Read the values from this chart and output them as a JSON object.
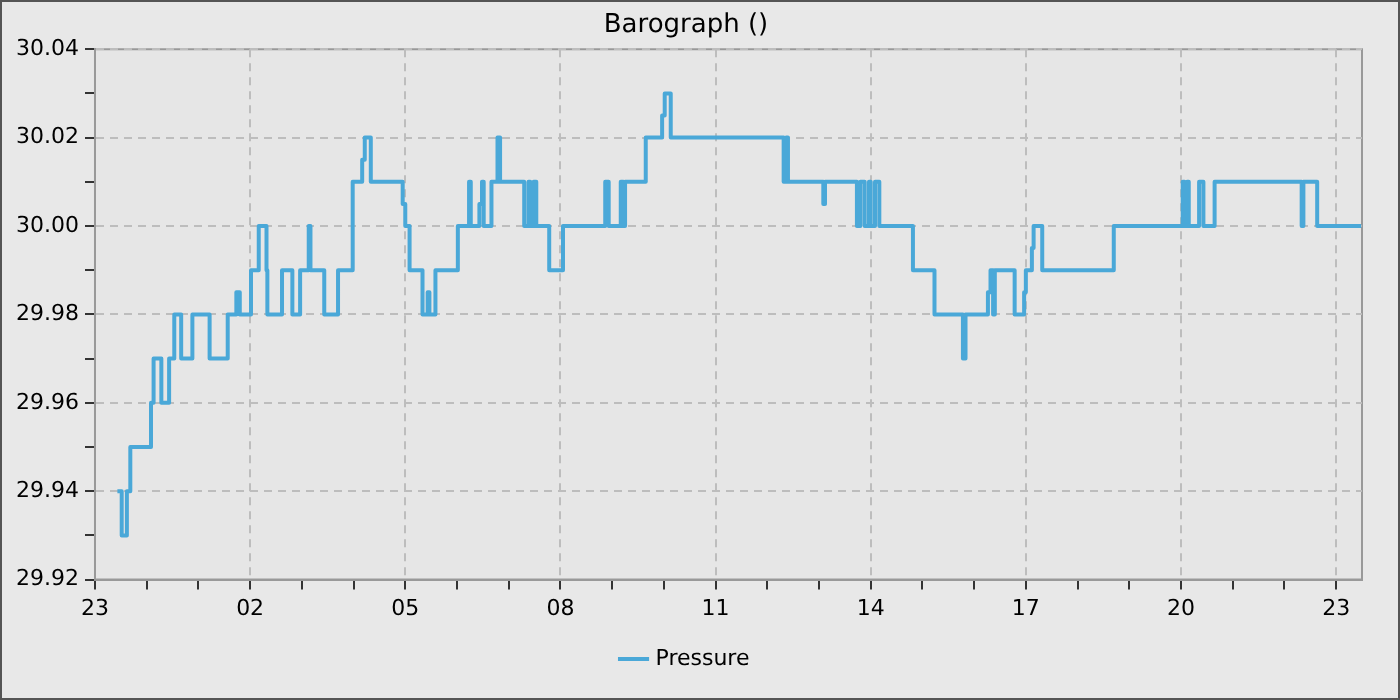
{
  "chart_data": {
    "type": "step",
    "title": "Barograph ()",
    "x": [
      "--01-01T23:26",
      "--01-01T23:31",
      "--01-01T23:37",
      "--01-01T23:41",
      "--01-02T00:05",
      "--01-02T00:08",
      "--01-02T00:17",
      "--01-02T00:26",
      "--01-02T00:32",
      "--01-02T00:40",
      "--01-02T00:53",
      "--01-02T01:13",
      "--01-02T01:34",
      "--01-02T01:44",
      "--01-02T01:48",
      "--01-02T02:01",
      "--01-02T02:10",
      "--01-02T02:19",
      "--01-02T02:20",
      "--01-02T02:37",
      "--01-02T02:49",
      "--01-02T02:58",
      "--01-02T03:08",
      "--01-02T03:10",
      "--01-02T03:26",
      "--01-02T03:42",
      "--01-02T03:59",
      "--01-02T04:10",
      "--01-02T04:13",
      "--01-02T04:20",
      "--01-02T04:57",
      "--01-02T05:00",
      "--01-02T05:05",
      "--01-02T05:20",
      "--01-02T05:26",
      "--01-02T05:28",
      "--01-02T05:35",
      "--01-02T06:01",
      "--01-02T06:14",
      "--01-02T06:16",
      "--01-02T06:26",
      "--01-02T06:29",
      "--01-02T06:31",
      "--01-02T06:40",
      "--01-02T06:47",
      "--01-02T06:50",
      "--01-02T07:18",
      "--01-02T07:23",
      "--01-02T07:25",
      "--01-02T07:29",
      "--01-02T07:32",
      "--01-02T07:47",
      "--01-02T08:03",
      "--01-02T08:52",
      "--01-02T08:56",
      "--01-02T09:10",
      "--01-02T09:13",
      "--01-02T09:15",
      "--01-02T09:39",
      "--01-02T09:58",
      "--01-02T10:01",
      "--01-02T10:08",
      "--01-02T12:19",
      "--01-02T12:22",
      "--01-02T12:24",
      "--01-02T13:05",
      "--01-02T13:07",
      "--01-02T13:44",
      "--01-02T13:48",
      "--01-02T13:53",
      "--01-02T13:58",
      "--01-02T14:00",
      "--01-02T14:05",
      "--01-02T14:10",
      "--01-02T14:49",
      "--01-02T15:14",
      "--01-02T15:47",
      "--01-02T15:50",
      "--01-02T16:16",
      "--01-02T16:19",
      "--01-02T16:22",
      "--01-02T16:24",
      "--01-02T16:47",
      "--01-02T16:58",
      "--01-02T17:00",
      "--01-02T17:07",
      "--01-02T17:09",
      "--01-02T17:19",
      "--01-02T18:42",
      "--01-02T20:02",
      "--01-02T20:04",
      "--01-02T20:07",
      "--01-02T20:09",
      "--01-02T20:21",
      "--01-02T20:26",
      "--01-02T20:39",
      "--01-02T22:20",
      "--01-02T22:22",
      "--01-02T22:38",
      "--01-02T23:29"
    ],
    "series": [
      {
        "name": "Pressure",
        "color": "#4aa8d8",
        "values": [
          29.94,
          29.93,
          29.94,
          29.95,
          29.96,
          29.97,
          29.96,
          29.97,
          29.98,
          29.97,
          29.98,
          29.97,
          29.98,
          29.985,
          29.98,
          29.99,
          30.0,
          29.99,
          29.98,
          29.99,
          29.98,
          29.99,
          30.0,
          29.99,
          29.98,
          29.99,
          30.01,
          30.015,
          30.02,
          30.01,
          30.005,
          30.0,
          29.99,
          29.98,
          29.985,
          29.98,
          29.99,
          30.0,
          30.01,
          30.0,
          30.005,
          30.01,
          30.0,
          30.01,
          30.02,
          30.01,
          30.0,
          30.01,
          30.0,
          30.01,
          30.0,
          29.99,
          30.0,
          30.01,
          30.0,
          30.01,
          30.0,
          30.01,
          30.02,
          30.025,
          30.03,
          30.02,
          30.01,
          30.02,
          30.01,
          30.005,
          30.01,
          30.0,
          30.01,
          30.0,
          30.01,
          30.0,
          30.01,
          30.0,
          29.99,
          29.98,
          29.97,
          29.98,
          29.985,
          29.99,
          29.98,
          29.99,
          29.98,
          29.985,
          29.99,
          29.995,
          30.0,
          29.99,
          30.0,
          30.01,
          30.0,
          30.01,
          30.0,
          30.01,
          30.0,
          30.01,
          30.0,
          30.01,
          30.0,
          30.0
        ]
      }
    ],
    "xlim": [
      "--01-01T23:00",
      "--01-02T23:30"
    ],
    "xticks": [
      {
        "value": "--01-01T23:00",
        "label": "23"
      },
      {
        "value": "--01-02T00:00",
        "label": null
      },
      {
        "value": "--01-02T01:00",
        "label": null
      },
      {
        "value": "--01-02T02:00",
        "label": "02"
      },
      {
        "value": "--01-02T03:00",
        "label": null
      },
      {
        "value": "--01-02T04:00",
        "label": null
      },
      {
        "value": "--01-02T05:00",
        "label": "05"
      },
      {
        "value": "--01-02T06:00",
        "label": null
      },
      {
        "value": "--01-02T07:00",
        "label": null
      },
      {
        "value": "--01-02T08:00",
        "label": "08"
      },
      {
        "value": "--01-02T09:00",
        "label": null
      },
      {
        "value": "--01-02T10:00",
        "label": null
      },
      {
        "value": "--01-02T11:00",
        "label": "11"
      },
      {
        "value": "--01-02T12:00",
        "label": null
      },
      {
        "value": "--01-02T13:00",
        "label": null
      },
      {
        "value": "--01-02T14:00",
        "label": "14"
      },
      {
        "value": "--01-02T15:00",
        "label": null
      },
      {
        "value": "--01-02T16:00",
        "label": null
      },
      {
        "value": "--01-02T17:00",
        "label": "17"
      },
      {
        "value": "--01-02T18:00",
        "label": null
      },
      {
        "value": "--01-02T19:00",
        "label": null
      },
      {
        "value": "--01-02T20:00",
        "label": "20"
      },
      {
        "value": "--01-02T21:00",
        "label": null
      },
      {
        "value": "--01-02T22:00",
        "label": null
      },
      {
        "value": "--01-02T23:00",
        "label": "23"
      }
    ],
    "ylim": [
      29.92,
      30.04
    ],
    "yticks": [
      29.92,
      {
        "value": 29.93,
        "label": null
      },
      29.94,
      {
        "value": 29.95,
        "label": null
      },
      29.96,
      {
        "value": 29.97,
        "label": null
      },
      29.98,
      {
        "value": 29.99,
        "label": null
      },
      {
        "value": 30,
        "label": "30.00"
      },
      {
        "value": 30.01,
        "label": null
      },
      30.02,
      {
        "value": 30.03,
        "label": null
      },
      30.04
    ],
    "grid": true,
    "legend": "bottom",
    "line_style": "solid"
  }
}
